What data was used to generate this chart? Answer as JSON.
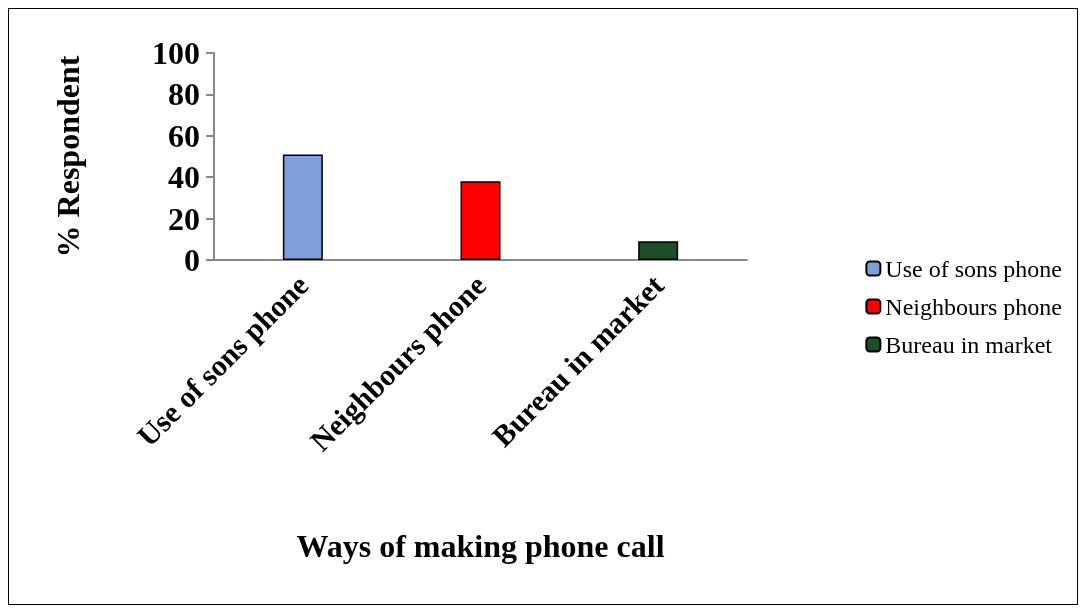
{
  "chart_data": {
    "type": "bar",
    "xlabel": "Ways of making phone call",
    "ylabel": "% Respondent",
    "categories": [
      "Use of sons phone",
      "Neighbours phone",
      "Bureau in market"
    ],
    "stacked": true,
    "series": [
      {
        "name": "Use of sons phone",
        "color": "#7f9fd8",
        "values": [
          51,
          null,
          null
        ]
      },
      {
        "name": "Neighbours phone",
        "color": "#ff0000",
        "values": [
          null,
          38,
          null
        ]
      },
      {
        "name": "Bureau in market",
        "color": "#1e4d2b",
        "values": [
          null,
          null,
          9
        ]
      }
    ],
    "ylim": [
      0,
      100
    ],
    "yticks": [
      0,
      20,
      40,
      60,
      80,
      100
    ],
    "grid": false,
    "legend": "right"
  }
}
